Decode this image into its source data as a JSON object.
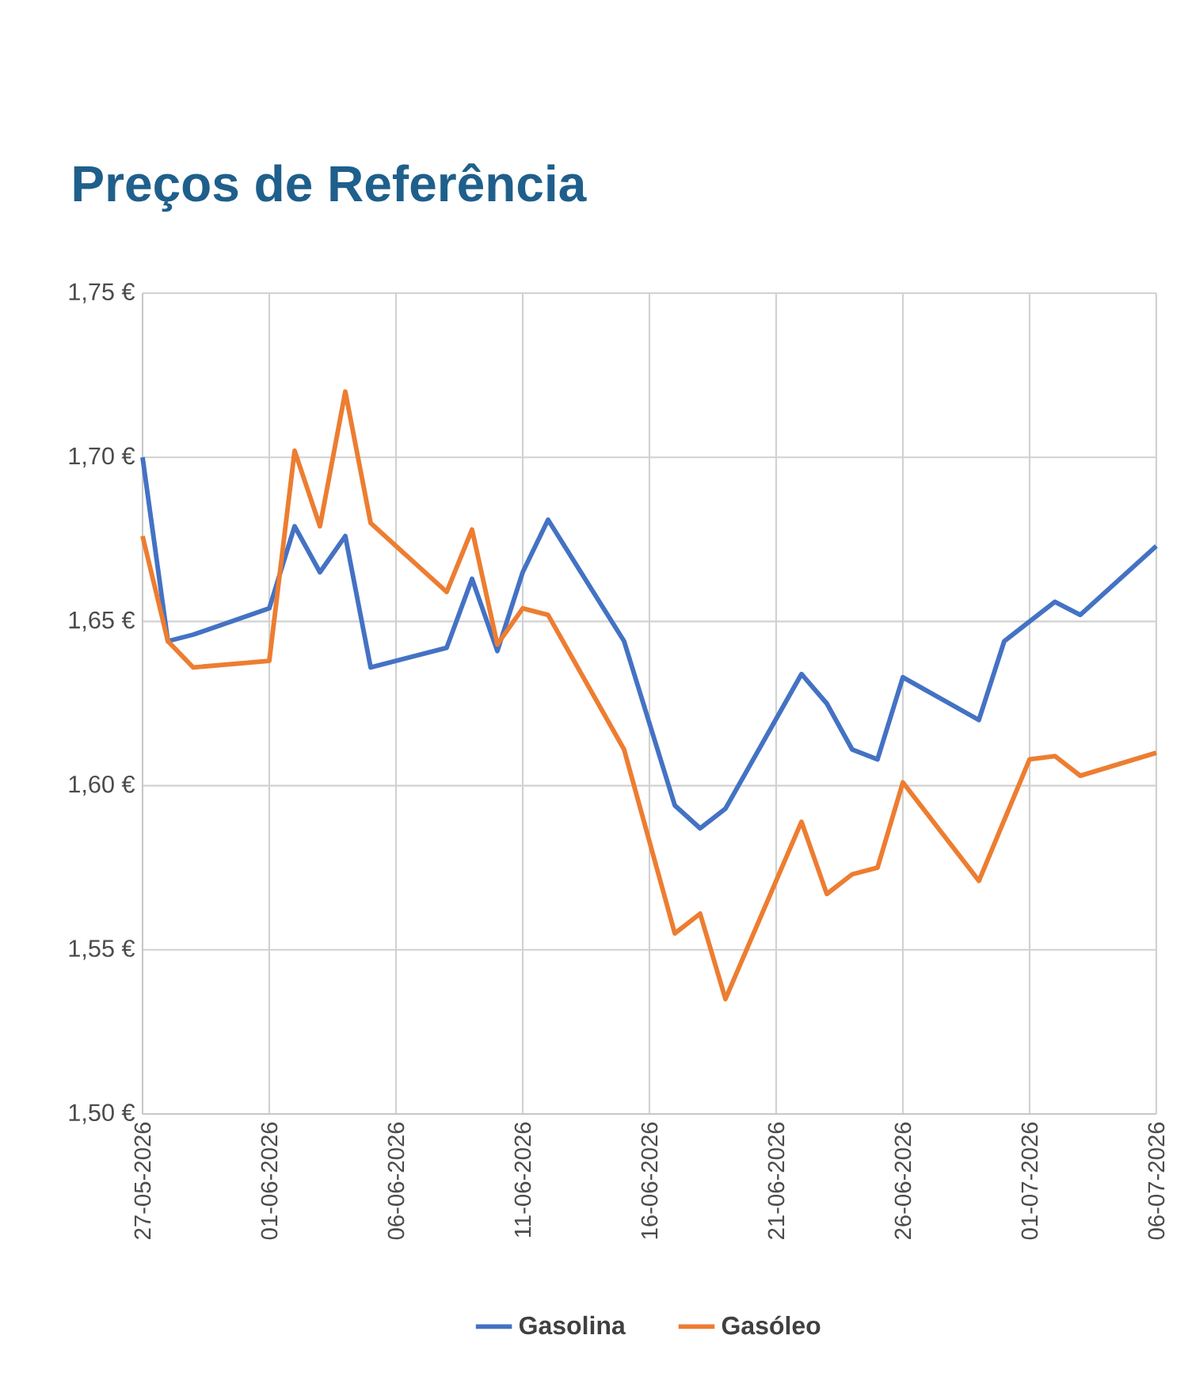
{
  "chart_data": {
    "type": "line",
    "title": "Preços de Referência",
    "xlim": [
      "2026-05-27",
      "2026-07-06"
    ],
    "xticks": [
      {
        "value": "2026-05-27",
        "label": "27-05-2026"
      },
      {
        "value": "2026-06-01",
        "label": "01-06-2026"
      },
      {
        "value": "2026-06-06",
        "label": "06-06-2026"
      },
      {
        "value": "2026-06-11",
        "label": "11-06-2026"
      },
      {
        "value": "2026-06-16",
        "label": "16-06-2026"
      },
      {
        "value": "2026-06-21",
        "label": "21-06-2026"
      },
      {
        "value": "2026-06-26",
        "label": "26-06-2026"
      },
      {
        "value": "2026-07-01",
        "label": "01-07-2026"
      },
      {
        "value": "2026-07-06",
        "label": "06-07-2026"
      }
    ],
    "ylim": [
      1.5,
      1.75
    ],
    "yticks": [
      {
        "value": 1.5,
        "label": "1,50 €"
      },
      {
        "value": 1.55,
        "label": "1,55 €"
      },
      {
        "value": 1.6,
        "label": "1,60 €"
      },
      {
        "value": 1.65,
        "label": "1,65 €"
      },
      {
        "value": 1.7,
        "label": "1,70 €"
      },
      {
        "value": 1.75,
        "label": "1,75 €"
      }
    ],
    "grid": true,
    "legend": "bottom",
    "series": [
      {
        "name": "Gasolina",
        "color": "#4472c4",
        "x": [
          "2026-05-27",
          "2026-05-28",
          "2026-05-29",
          "2026-06-01",
          "2026-06-02",
          "2026-06-03",
          "2026-06-04",
          "2026-06-05",
          "2026-06-08",
          "2026-06-09",
          "2026-06-10",
          "2026-06-11",
          "2026-06-12",
          "2026-06-15",
          "2026-06-17",
          "2026-06-18",
          "2026-06-19",
          "2026-06-22",
          "2026-06-23",
          "2026-06-24",
          "2026-06-25",
          "2026-06-26",
          "2026-06-29",
          "2026-06-30",
          "2026-07-01",
          "2026-07-02",
          "2026-07-03",
          "2026-07-06"
        ],
        "values": [
          1.7,
          1.644,
          1.646,
          1.654,
          1.679,
          1.665,
          1.676,
          1.636,
          1.642,
          1.663,
          1.641,
          1.665,
          1.681,
          1.644,
          1.594,
          1.587,
          1.593,
          1.634,
          1.625,
          1.611,
          1.608,
          1.633,
          1.62,
          1.644,
          1.65,
          1.656,
          1.652,
          1.673
        ]
      },
      {
        "name": "Gasóleo",
        "color": "#ed7d31",
        "x": [
          "2026-05-27",
          "2026-05-28",
          "2026-05-29",
          "2026-06-01",
          "2026-06-02",
          "2026-06-03",
          "2026-06-04",
          "2026-06-05",
          "2026-06-08",
          "2026-06-09",
          "2026-06-10",
          "2026-06-11",
          "2026-06-12",
          "2026-06-15",
          "2026-06-17",
          "2026-06-18",
          "2026-06-19",
          "2026-06-22",
          "2026-06-23",
          "2026-06-24",
          "2026-06-25",
          "2026-06-26",
          "2026-06-29",
          "2026-07-01",
          "2026-07-02",
          "2026-07-03",
          "2026-07-06"
        ],
        "values": [
          1.676,
          1.644,
          1.636,
          1.638,
          1.702,
          1.679,
          1.72,
          1.68,
          1.659,
          1.678,
          1.643,
          1.654,
          1.652,
          1.611,
          1.555,
          1.561,
          1.535,
          1.589,
          1.567,
          1.573,
          1.575,
          1.601,
          1.571,
          1.608,
          1.609,
          1.603,
          1.61
        ]
      }
    ]
  }
}
